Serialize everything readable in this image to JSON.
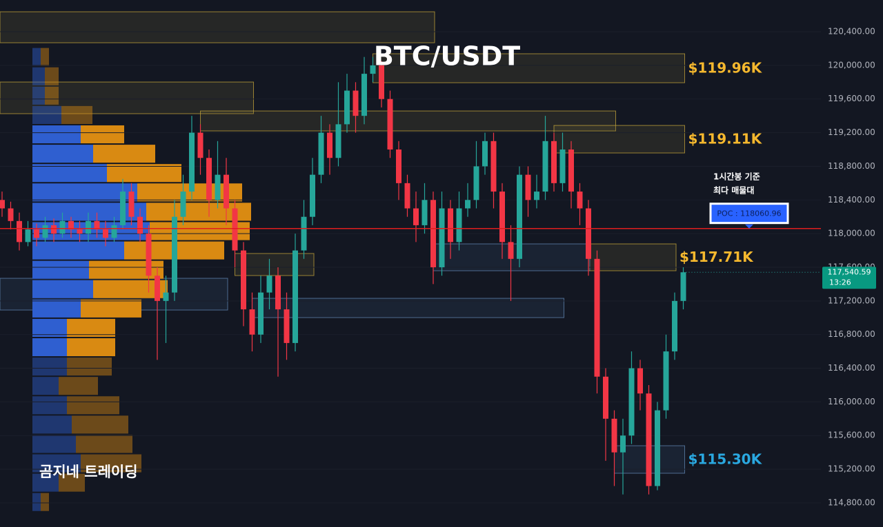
{
  "chart_data": {
    "type": "candlestick",
    "title": "BTC/USDT",
    "watermark": "곰지네 트레이딩",
    "ylim": [
      114513,
      120777
    ],
    "yticks": [
      {
        "value": 114800,
        "label": "114,800.00"
      },
      {
        "value": 115200,
        "label": "115,200.00"
      },
      {
        "value": 115600,
        "label": "115,600.00"
      },
      {
        "value": 116000,
        "label": "116,000.00"
      },
      {
        "value": 116400,
        "label": "116,400.00"
      },
      {
        "value": 116800,
        "label": "116,800.00"
      },
      {
        "value": 117200,
        "label": "117,200.00"
      },
      {
        "value": 117600,
        "label": "117,600.00"
      },
      {
        "value": 118000,
        "label": "118,000.00"
      },
      {
        "value": 118400,
        "label": "118,400.00"
      },
      {
        "value": 118800,
        "label": "118,800.00"
      },
      {
        "value": 119200,
        "label": "119,200.00"
      },
      {
        "value": 119600,
        "label": "119,600.00"
      },
      {
        "value": 120000,
        "label": "120,000.00"
      },
      {
        "value": 120400,
        "label": "120,400.00"
      }
    ],
    "up_color": "#26a69a",
    "down_color": "#f23645",
    "open": [
      118400,
      118300,
      118150,
      117900,
      118050,
      117950,
      118100,
      118000,
      118150,
      118050,
      118000,
      118150,
      118050,
      117950,
      118100,
      118500,
      118200,
      118000,
      117500,
      117200,
      117300,
      118200,
      118500,
      119200,
      118900,
      118400,
      118700,
      118300,
      117800,
      117100,
      116800,
      117300,
      117500,
      117100,
      116700,
      117800,
      118200,
      118700,
      119200,
      118900,
      119300,
      119700,
      119400,
      119900,
      120000,
      119600,
      119000,
      118600,
      118300,
      118100,
      118400,
      117600,
      118300,
      117900,
      118300,
      118400,
      118800,
      119100,
      118500,
      117900,
      117700,
      118700,
      118400,
      118500,
      119100,
      118600,
      119000,
      118500,
      118300,
      117700,
      116300,
      115800,
      115400,
      115600,
      116400,
      116100,
      115000,
      115900,
      116600,
      117200
    ],
    "high": [
      118500,
      118380,
      118250,
      118150,
      118120,
      118200,
      118180,
      118250,
      118200,
      118150,
      118250,
      118250,
      118150,
      118200,
      118650,
      118600,
      118300,
      118100,
      117600,
      117500,
      118400,
      118700,
      119400,
      119300,
      119000,
      119100,
      118900,
      118400,
      117900,
      117300,
      117500,
      117700,
      117600,
      117300,
      118000,
      118400,
      118900,
      119400,
      119300,
      119800,
      119900,
      119800,
      120100,
      120100,
      120050,
      119700,
      119100,
      118700,
      118500,
      118600,
      118500,
      118500,
      118400,
      118500,
      118600,
      119100,
      119200,
      119200,
      118600,
      118100,
      118800,
      118800,
      118700,
      119400,
      119200,
      119200,
      119100,
      118600,
      118400,
      117800,
      116400,
      115900,
      115800,
      116600,
      116500,
      116200,
      116000,
      116800,
      117300,
      117600
    ],
    "low": [
      118200,
      118050,
      117800,
      117850,
      117850,
      117900,
      117900,
      117950,
      117950,
      117900,
      117900,
      117950,
      117850,
      117900,
      118050,
      118100,
      117900,
      117300,
      116500,
      116700,
      117200,
      118100,
      118400,
      118700,
      118200,
      118300,
      118100,
      117600,
      116900,
      116600,
      116700,
      117100,
      116300,
      116500,
      116600,
      117700,
      118100,
      118600,
      118700,
      118800,
      119200,
      119200,
      119300,
      119800,
      119500,
      118900,
      118400,
      118200,
      117900,
      118000,
      117400,
      117500,
      117700,
      117800,
      118200,
      118300,
      118700,
      118300,
      117700,
      117200,
      117600,
      118200,
      118300,
      118400,
      118500,
      118500,
      118300,
      118100,
      117500,
      116100,
      115300,
      115000,
      114900,
      115500,
      115900,
      114900,
      114950,
      115800,
      116500,
      117100
    ],
    "close": [
      118300,
      118150,
      117900,
      118050,
      117950,
      118100,
      118000,
      118150,
      118050,
      118000,
      118150,
      118050,
      117950,
      118100,
      118500,
      118200,
      118000,
      117500,
      117200,
      117300,
      118200,
      118500,
      119200,
      118900,
      118400,
      118700,
      118300,
      117800,
      117100,
      116800,
      117300,
      117500,
      117100,
      116700,
      117800,
      118200,
      118700,
      119200,
      118900,
      119300,
      119700,
      119400,
      119900,
      120000,
      119600,
      119000,
      118600,
      118300,
      118100,
      118400,
      117600,
      118300,
      117900,
      118300,
      118400,
      118800,
      119100,
      118500,
      117900,
      117700,
      118700,
      118400,
      118500,
      119100,
      118600,
      119000,
      118500,
      118300,
      117700,
      116300,
      115800,
      115400,
      115600,
      116400,
      116100,
      115000,
      115900,
      116600,
      117200,
      117540.59
    ],
    "current_price_label": "117,540.59",
    "countdown": "13:26",
    "poc": {
      "value": 118060.96,
      "label": "POC : 118060.96",
      "note_line1": "1시간봉 기준",
      "note_line2": "최다 매물대",
      "color": "#e01e1e"
    },
    "zones": [
      {
        "top": 120637,
        "bottom": 120269,
        "from": 0,
        "to": 50,
        "color": "yellow"
      },
      {
        "top": 119802,
        "bottom": 119426,
        "from": 0,
        "to": 29,
        "color": "yellow"
      },
      {
        "top": 119458,
        "bottom": 119221,
        "from": 23,
        "to": 71,
        "color": "yellow"
      },
      {
        "top": 120138,
        "bottom": 119794,
        "from": 43,
        "to": 79,
        "color": "yellow",
        "label": "$119.96K"
      },
      {
        "top": 119286,
        "bottom": 118959,
        "from": 64,
        "to": 79,
        "color": "yellow",
        "label": "$119.11K"
      },
      {
        "top": 117878,
        "bottom": 117559,
        "from": 50,
        "to": 68,
        "color": "blue"
      },
      {
        "top": 117878,
        "bottom": 117559,
        "from": 68,
        "to": 78,
        "color": "yellow",
        "label": "$117.71K"
      },
      {
        "top": 117764,
        "bottom": 117502,
        "from": 27,
        "to": 36,
        "color": "yellow"
      },
      {
        "top": 117469,
        "bottom": 117092,
        "from": 0,
        "to": 26,
        "color": "blue"
      },
      {
        "top": 117231,
        "bottom": 117002,
        "from": 29,
        "to": 65,
        "color": "blue"
      },
      {
        "top": 115479,
        "bottom": 115152,
        "from": 71,
        "to": 79,
        "color": "blue",
        "label": "$115.30K"
      }
    ],
    "volume_profile": {
      "levels": [
        120100,
        119870,
        119640,
        119410,
        119180,
        118950,
        118720,
        118490,
        118260,
        118030,
        117800,
        117570,
        117340,
        117110,
        116880,
        116650,
        116420,
        116190,
        115960,
        115730,
        115500,
        115270,
        115040,
        114810
      ],
      "buy": [
        12,
        18,
        18,
        42,
        70,
        88,
        108,
        152,
        165,
        170,
        133,
        82,
        88,
        70,
        50,
        50,
        50,
        38,
        50,
        57,
        63,
        70,
        38,
        12
      ],
      "sell": [
        12,
        20,
        20,
        45,
        63,
        90,
        108,
        152,
        152,
        145,
        145,
        108,
        108,
        88,
        70,
        70,
        65,
        57,
        76,
        82,
        82,
        88,
        38,
        12
      ],
      "value_area": [
        116650,
        119180
      ],
      "buy_color": "#2f5fd0",
      "sell_color": "#d98a12"
    }
  }
}
